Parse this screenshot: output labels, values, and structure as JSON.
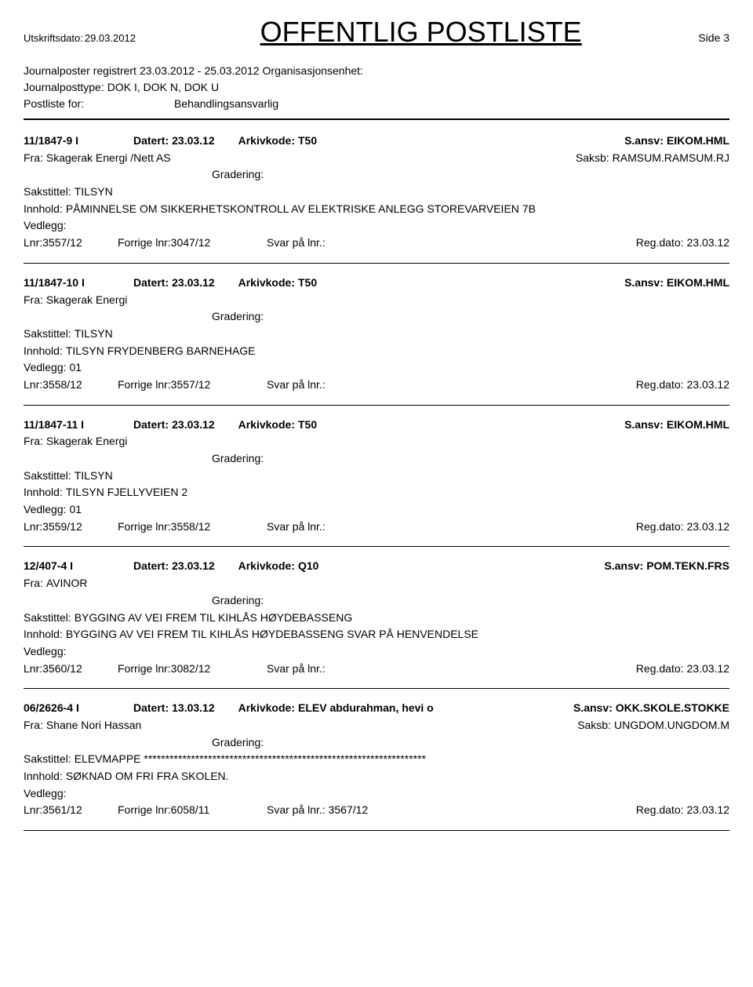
{
  "header": {
    "print_date_label": "Utskriftsdato:",
    "print_date": "29.03.2012",
    "title": "OFFENTLIG POSTLISTE",
    "page_label": "Side",
    "page_num": "3"
  },
  "meta": {
    "registered_label": "Journalposter registrert",
    "registered_range": "23.03.2012 - 25.03.2012",
    "org_label": "Organisasjonsenhet:",
    "posttype_label": "Journalposttype:",
    "posttype_value": "DOK I, DOK N, DOK U",
    "postliste_label": "Postliste for:",
    "postliste_value": "Behandlingsansvarlig"
  },
  "labels": {
    "datert": "Datert:",
    "arkivkode": "Arkivkode:",
    "sansv": "S.ansv:",
    "fra": "Fra:",
    "saksb": "Saksb:",
    "gradering": "Gradering:",
    "sakstittel": "Sakstittel:",
    "innhold": "Innhold:",
    "vedlegg": "Vedlegg:",
    "lnr": "Lnr:",
    "forrige": "Forrige lnr:",
    "svar": "Svar på lnr.:",
    "regdato": "Reg.dato:"
  },
  "entries": [
    {
      "id": "11/1847-9 I",
      "datert": "23.03.12",
      "arkivkode": "T50",
      "sansv": "EIKOM.HML",
      "fra": "Skagerak Energi /Nett AS",
      "saksb": "RAMSUM.RAMSUM.RJ",
      "sakstittel": "TILSYN",
      "innhold": "PÅMINNELSE OM SIKKERHETSKONTROLL AV ELEKTRISKE ANLEGG  STOREVARVEIEN 7B",
      "vedlegg": "",
      "lnr": "3557/12",
      "forrige": "3047/12",
      "svar": "",
      "regdato": "23.03.12"
    },
    {
      "id": "11/1847-10 I",
      "datert": "23.03.12",
      "arkivkode": "T50",
      "sansv": "EIKOM.HML",
      "fra": "Skagerak Energi",
      "saksb": "",
      "sakstittel": "TILSYN",
      "innhold": "TILSYN  FRYDENBERG BARNEHAGE",
      "vedlegg": "01",
      "lnr": "3558/12",
      "forrige": "3557/12",
      "svar": "",
      "regdato": "23.03.12"
    },
    {
      "id": "11/1847-11 I",
      "datert": "23.03.12",
      "arkivkode": "T50",
      "sansv": "EIKOM.HML",
      "fra": "Skagerak Energi",
      "saksb": "",
      "sakstittel": "TILSYN",
      "innhold": "TILSYN  FJELLYVEIEN 2",
      "vedlegg": "01",
      "lnr": "3559/12",
      "forrige": "3558/12",
      "svar": "",
      "regdato": "23.03.12"
    },
    {
      "id": "12/407-4 I",
      "datert": "23.03.12",
      "arkivkode": "Q10",
      "sansv": "POM.TEKN.FRS",
      "fra": "AVINOR",
      "saksb": "",
      "sakstittel": "BYGGING AV VEI FREM TIL KIHLÅS HØYDEBASSENG",
      "innhold": "BYGGING AV VEI FREM TIL KIHLÅS HØYDEBASSENG  SVAR PÅ HENVENDELSE",
      "vedlegg": "",
      "lnr": "3560/12",
      "forrige": "3082/12",
      "svar": "",
      "regdato": "23.03.12"
    },
    {
      "id": "06/2626-4 I",
      "datert": "13.03.12",
      "arkivkode": "ELEV abdurahman, hevi o",
      "sansv": "OKK.SKOLE.STOKKE",
      "fra": "Shane Nori Hassan",
      "saksb": "UNGDOM.UNGDOM.M",
      "sakstittel": "ELEVMAPPE   ******************************************************************",
      "innhold": "SØKNAD OM FRI FRA SKOLEN.",
      "vedlegg": "",
      "lnr": "3561/12",
      "forrige": "6058/11",
      "svar": "3567/12",
      "regdato": "23.03.12"
    }
  ]
}
